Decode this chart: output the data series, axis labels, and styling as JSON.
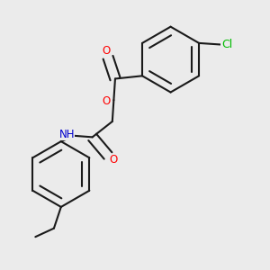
{
  "bg_color": "#ebebeb",
  "bond_color": "#1a1a1a",
  "bond_width": 1.5,
  "dbo": 0.018,
  "atom_colors": {
    "O": "#ff0000",
    "N": "#0000cd",
    "Cl": "#00bb00",
    "H": "#555555",
    "C": "#1a1a1a"
  },
  "font_size": 8.5
}
